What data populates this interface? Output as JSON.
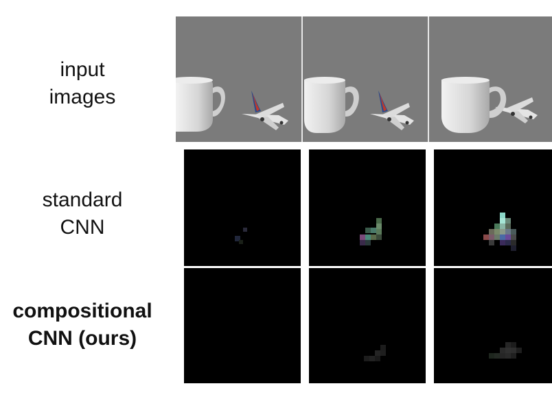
{
  "figure": {
    "rows": [
      {
        "id": "input-images",
        "label_lines": [
          "input",
          "images"
        ],
        "bold": false
      },
      {
        "id": "standard-cnn",
        "label_lines": [
          "standard",
          "CNN"
        ],
        "bold": false
      },
      {
        "id": "compositional-cnn",
        "label_lines": [
          "compositional",
          "CNN (ours)"
        ],
        "bold": true
      }
    ],
    "columns": 3,
    "colors": {
      "background": "#ffffff",
      "input_background": "#7b7b7b",
      "feature_map_background": "#000000",
      "mug": "#d9d9d9",
      "airplane": "#e6e6e6",
      "airplane_tail_red": "#c0392b",
      "airplane_tail_blue": "#2c4a8a"
    }
  }
}
